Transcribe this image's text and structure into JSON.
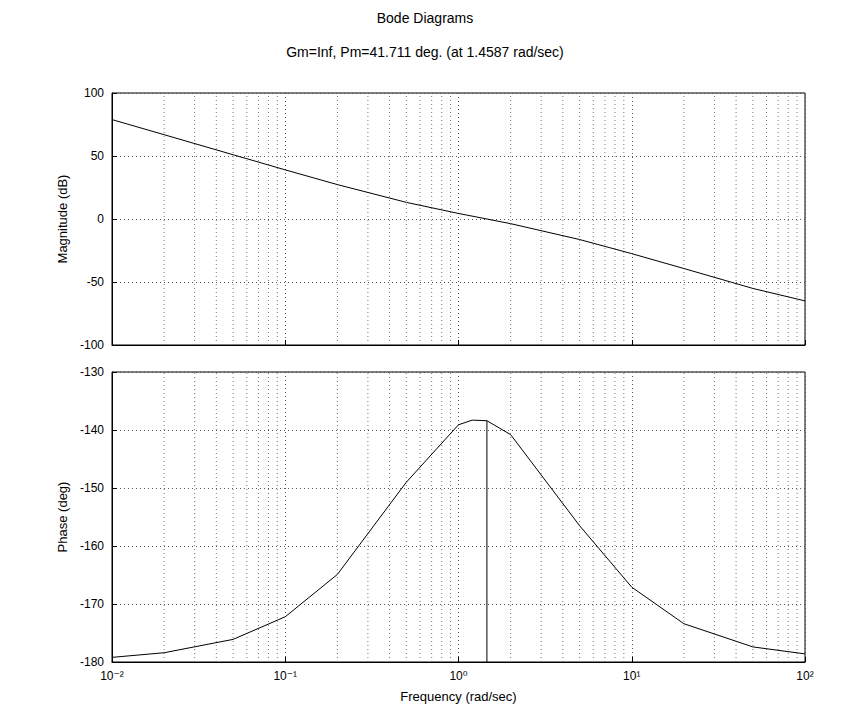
{
  "chart_data": [
    {
      "type": "line",
      "title": "Bode Diagrams",
      "subtitle": "Gm=Inf, Pm=41.711 deg. (at 1.4587 rad/sec)",
      "y_label": "Magnitude (dB)",
      "log": "x",
      "grid": true,
      "tick_labels": "y",
      "x": [
        0.01,
        0.02,
        0.05,
        0.1,
        0.2,
        0.5,
        1,
        1.4587,
        2,
        5,
        10,
        20,
        50,
        100
      ],
      "series": [
        {
          "color": "#000000",
          "values": [
            78.9,
            66.9,
            51.0,
            39.0,
            27.3,
            13.2,
            4.4,
            0.0,
            -3.7,
            -16.3,
            -27.5,
            -39.3,
            -55.1,
            -65.0
          ]
        }
      ],
      "xlim": [
        0.01,
        100
      ],
      "xticks": [
        0.01,
        0.1,
        1,
        10,
        100
      ],
      "ylim": [
        -100,
        100
      ],
      "yticks": [
        -100,
        -50,
        0,
        50,
        100
      ]
    },
    {
      "type": "line",
      "x_label": "Frequency (rad/sec)",
      "y_label": "Phase (deg)",
      "log": "x",
      "grid": true,
      "x": [
        0.01,
        0.02,
        0.05,
        0.1,
        0.2,
        0.5,
        1,
        1.2,
        1.4587,
        2,
        5,
        10,
        20,
        50,
        100
      ],
      "series": [
        {
          "color": "#000000",
          "values": [
            -179.2,
            -178.4,
            -176.1,
            -172.2,
            -164.9,
            -149.0,
            -139.1,
            -138.3,
            -138.4,
            -140.8,
            -156.5,
            -167.1,
            -173.4,
            -177.4,
            -178.6
          ]
        },
        {
          "color": "#000000",
          "x": [
            1.4587,
            1.4587
          ],
          "values": [
            -138.4,
            -180
          ]
        }
      ],
      "xlim": [
        0.01,
        100
      ],
      "xticks": [
        {
          "value": 0.01,
          "label": "10⁻²"
        },
        {
          "value": 0.1,
          "label": "10⁻¹"
        },
        {
          "value": 1,
          "label": "10⁰"
        },
        {
          "value": 10,
          "label": "10¹"
        },
        {
          "value": 100,
          "label": "10²"
        }
      ],
      "ylim": [
        -180,
        -130
      ],
      "yticks": [
        -180,
        -170,
        -160,
        -150,
        -140,
        -130
      ]
    }
  ]
}
